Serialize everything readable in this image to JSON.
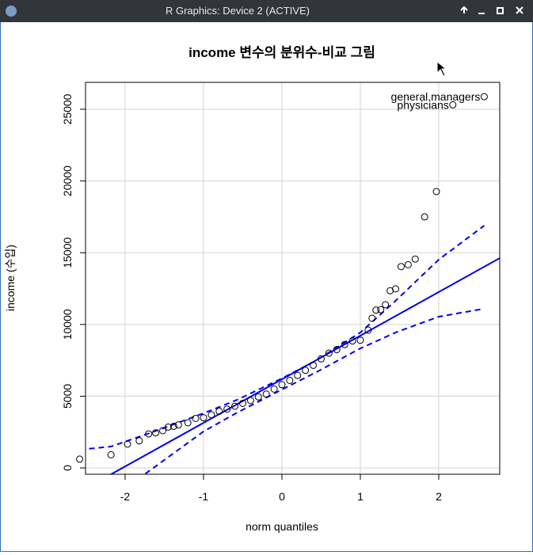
{
  "window_title": "R Graphics: Device 2 (ACTIVE)",
  "chart_data": {
    "type": "qqplot",
    "title": "income 변수의 분위수-비교 그림",
    "x_label": "norm quantiles",
    "y_label": "income (수입)",
    "xlim": [
      -2.505,
      2.778
    ],
    "ylim": [
      -441,
      26876
    ],
    "xticks": [
      -2,
      -1,
      0,
      1,
      2
    ],
    "yticks": [
      0,
      5000,
      10000,
      15000,
      20000,
      25000
    ],
    "grid": true,
    "x": [
      -2.58,
      -2.18,
      -1.97,
      -1.82,
      -1.7,
      -1.61,
      -1.52,
      -1.45,
      -1.38,
      -1.32,
      -1.2,
      -1.1,
      -1.0,
      -0.9,
      -0.8,
      -0.7,
      -0.6,
      -0.5,
      -0.4,
      -0.3,
      -0.2,
      -0.1,
      0,
      0.1,
      0.2,
      0.3,
      0.4,
      0.5,
      0.6,
      0.7,
      0.8,
      0.9,
      1.0,
      1.1,
      1.15,
      1.2,
      1.26,
      1.32,
      1.38,
      1.45,
      1.52,
      1.61,
      1.7,
      1.82,
      1.97,
      2.18,
      2.58
    ],
    "values": [
      611,
      918,
      1656,
      1890,
      2370,
      2448,
      2594,
      2847,
      2901,
      3000,
      3148,
      3450,
      3500,
      3700,
      3950,
      4100,
      4300,
      4500,
      4700,
      4950,
      5150,
      5500,
      5800,
      6100,
      6450,
      6800,
      7150,
      7600,
      8000,
      8250,
      8600,
      8850,
      8900,
      9600,
      10432,
      11000,
      11030,
      11377,
      12351,
      12480,
      14032,
      14163,
      14558,
      17498,
      19263,
      25308,
      25879
    ],
    "point_labels": [
      null,
      null,
      null,
      null,
      null,
      null,
      null,
      null,
      null,
      null,
      null,
      null,
      null,
      null,
      null,
      null,
      null,
      null,
      null,
      null,
      null,
      null,
      null,
      null,
      null,
      null,
      null,
      null,
      null,
      null,
      null,
      null,
      null,
      null,
      null,
      null,
      null,
      null,
      null,
      null,
      null,
      null,
      null,
      null,
      null,
      "physicians",
      "general.managers"
    ],
    "reference_line": {
      "color": "#0000ee",
      "x": [
        -2.6,
        2.9
      ],
      "values": [
        -1722,
        14994
      ]
    },
    "envelope": {
      "color": "#0000ee",
      "upper": {
        "x": [
          -2.58,
          -2.18,
          -1.57,
          -1.0,
          -0.57,
          0,
          0.44,
          1.0,
          1.45,
          2.0,
          2.58
        ],
        "values": [
          1270,
          1490,
          2650,
          3810,
          4750,
          6240,
          7500,
          9440,
          11650,
          14520,
          16890
        ]
      },
      "lower": {
        "x": [
          -2.0,
          -1.75,
          -1.0,
          -0.57,
          0,
          0.44,
          1.0,
          1.45,
          2.0,
          2.58
        ],
        "values": [
          -1800,
          -441,
          2540,
          3860,
          5460,
          6680,
          8330,
          9440,
          10540,
          11100
        ]
      }
    }
  }
}
